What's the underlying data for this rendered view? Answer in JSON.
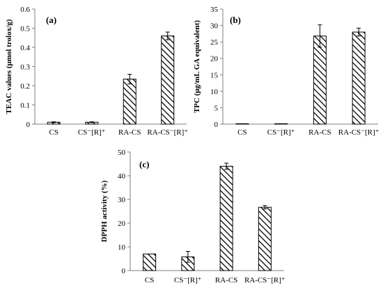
{
  "chart_data": [
    {
      "type": "bar",
      "panel_label": "(a)",
      "ylabel": "TEAC values (μmol trolox/g)",
      "categories": [
        "CS",
        "CS⁻[R]⁺",
        "RA-CS",
        "RA-CS⁻[R]⁺"
      ],
      "values": [
        0.01,
        0.01,
        0.235,
        0.46
      ],
      "errors": [
        0.002,
        0.002,
        0.025,
        0.02
      ],
      "ylim": [
        0,
        0.6
      ],
      "yticks": [
        0,
        0.1,
        0.2,
        0.3,
        0.4,
        0.5,
        0.6
      ],
      "yticklabels": [
        "0",
        "0.1",
        "0.2",
        "0.3",
        "0.4",
        "0.5",
        "0.6"
      ],
      "grid": false
    },
    {
      "type": "bar",
      "panel_label": "(b)",
      "ylabel": "TPC (μg/mL GA equivalent)",
      "categories": [
        "CS",
        "CS⁻[R]⁺",
        "RA-CS",
        "RA-CS⁻[R]⁺"
      ],
      "values": [
        0.05,
        0.05,
        26.8,
        28.0
      ],
      "errors": [
        0.0,
        0.0,
        3.4,
        1.2
      ],
      "ylim": [
        0,
        35
      ],
      "yticks": [
        0,
        5,
        10,
        15,
        20,
        25,
        30,
        35
      ],
      "yticklabels": [
        "0",
        "5",
        "10",
        "15",
        "20",
        "25",
        "30",
        "35"
      ],
      "grid": false
    },
    {
      "type": "bar",
      "panel_label": "(c)",
      "ylabel": "DPPH activity (%)",
      "categories": [
        "CS",
        "CS⁻[R]⁺",
        "RA-CS",
        "RA-CS⁻[R]⁺"
      ],
      "values": [
        7.0,
        5.8,
        44.0,
        26.7
      ],
      "errors": [
        0.0,
        2.3,
        1.3,
        0.7
      ],
      "ylim": [
        0,
        50
      ],
      "yticks": [
        0,
        10,
        20,
        30,
        40,
        50
      ],
      "yticklabels": [
        "0",
        "10",
        "20",
        "30",
        "40",
        "50"
      ],
      "grid": false
    }
  ]
}
